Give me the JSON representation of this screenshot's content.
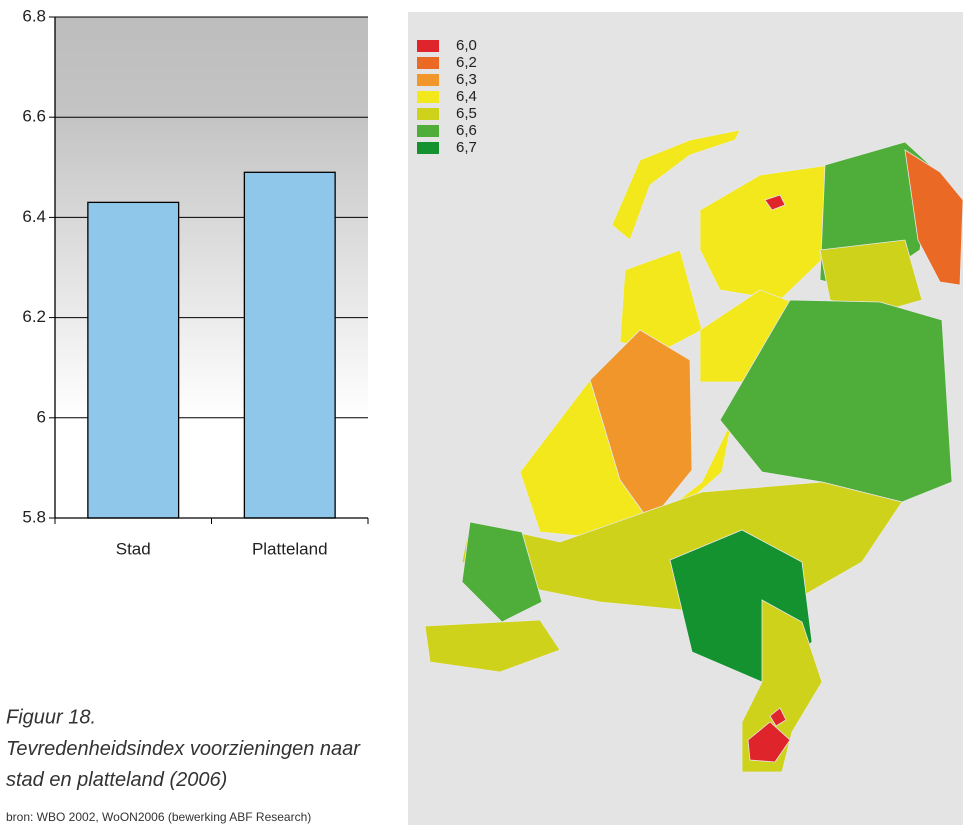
{
  "chart_data": [
    {
      "type": "bar",
      "categories": [
        "Stad",
        "Platteland"
      ],
      "values": [
        6.43,
        6.49
      ],
      "color": "#8ec7ea",
      "ylim": [
        5.8,
        6.8
      ],
      "yticks": [
        5.8,
        6,
        6.2,
        6.4,
        6.6,
        6.8
      ],
      "grid": true,
      "figure_label": "Figuur 18.",
      "caption": "Tevredenheidsindex voorzieningen naar stad en platteland (2006)",
      "source": "bron: WBO 2002, WoON2006 (bewerking ABF Research)"
    },
    {
      "type": "map",
      "legend": [
        {
          "label": "6,0",
          "color": "#e0242c"
        },
        {
          "label": "6,2",
          "color": "#ea6a25"
        },
        {
          "label": "6,3",
          "color": "#f0962a"
        },
        {
          "label": "6,4",
          "color": "#f2e81c"
        },
        {
          "label": "6,5",
          "color": "#cfd21a"
        },
        {
          "label": "6,6",
          "color": "#4fad3a"
        },
        {
          "label": "6,7",
          "color": "#13922f"
        }
      ]
    }
  ]
}
